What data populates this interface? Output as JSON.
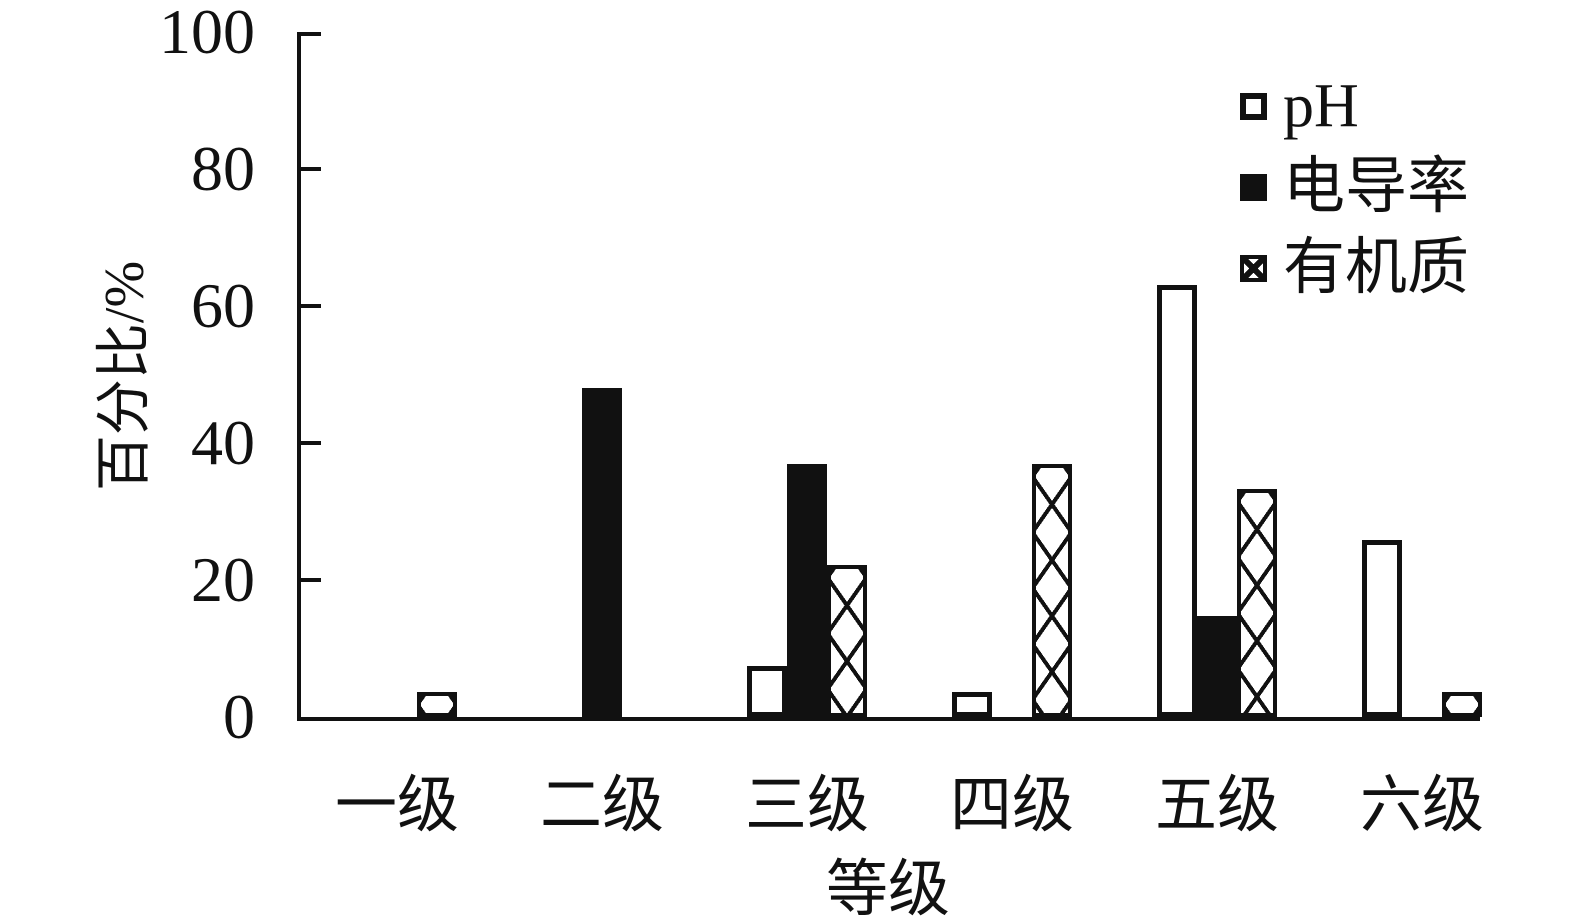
{
  "chart_data": {
    "type": "bar",
    "title": "",
    "xlabel": "等级",
    "ylabel": "百分比/%",
    "categories": [
      "一级",
      "二级",
      "三级",
      "四级",
      "五级",
      "六级"
    ],
    "series": [
      {
        "name": "pH",
        "pattern": "hollow",
        "fill": "#ffffff",
        "stroke": "#111111",
        "values": [
          0,
          0,
          7.4,
          3.7,
          63.0,
          25.9
        ]
      },
      {
        "name": "电导率",
        "pattern": "solid",
        "fill": "#111111",
        "stroke": "#111111",
        "values": [
          0,
          48.1,
          37.0,
          0,
          14.8,
          0
        ]
      },
      {
        "name": "有机质",
        "pattern": "crosshatch",
        "fill": "#ffffff",
        "stroke": "#111111",
        "values": [
          3.7,
          0,
          22.2,
          37.0,
          33.3,
          3.7
        ]
      }
    ],
    "y_ticks": [
      0,
      20,
      40,
      60,
      80,
      100
    ],
    "ylim": [
      0,
      100
    ],
    "grid": false,
    "legend_position": "upper right",
    "background": "#ffffff",
    "axis_color": "#111111"
  }
}
